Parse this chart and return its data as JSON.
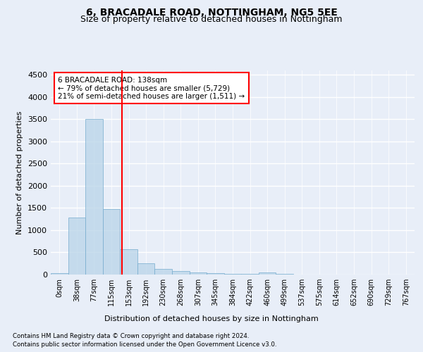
{
  "title1": "6, BRACADALE ROAD, NOTTINGHAM, NG5 5EE",
  "title2": "Size of property relative to detached houses in Nottingham",
  "xlabel": "Distribution of detached houses by size in Nottingham",
  "ylabel": "Number of detached properties",
  "footer1": "Contains HM Land Registry data © Crown copyright and database right 2024.",
  "footer2": "Contains public sector information licensed under the Open Government Licence v3.0.",
  "bar_labels": [
    "0sqm",
    "38sqm",
    "77sqm",
    "115sqm",
    "153sqm",
    "192sqm",
    "230sqm",
    "268sqm",
    "307sqm",
    "345sqm",
    "384sqm",
    "422sqm",
    "460sqm",
    "499sqm",
    "537sqm",
    "575sqm",
    "614sqm",
    "652sqm",
    "690sqm",
    "729sqm",
    "767sqm"
  ],
  "bar_values": [
    30,
    1280,
    3500,
    1480,
    570,
    250,
    130,
    80,
    45,
    30,
    20,
    10,
    50,
    10,
    0,
    0,
    0,
    0,
    0,
    0,
    0
  ],
  "bar_color": "#b8d4e8",
  "bar_edge_color": "#7aaed0",
  "bar_alpha": 0.75,
  "vline_color": "red",
  "annotation_text": "6 BRACADALE ROAD: 138sqm\n← 79% of detached houses are smaller (5,729)\n21% of semi-detached houses are larger (1,511) →",
  "annotation_box_color": "white",
  "annotation_box_edge": "red",
  "ylim": [
    0,
    4600
  ],
  "yticks": [
    0,
    500,
    1000,
    1500,
    2000,
    2500,
    3000,
    3500,
    4000,
    4500
  ],
  "bg_color": "#e8eef8",
  "grid_color": "white",
  "title1_fontsize": 10,
  "title2_fontsize": 9
}
